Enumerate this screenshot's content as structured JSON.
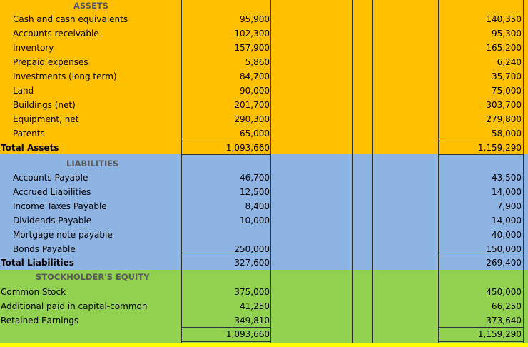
{
  "colors": {
    "assets": "#FFC000",
    "liabilities": "#8DB4E2",
    "equity": "#92D050"
  },
  "assets": {
    "heading": "ASSETS",
    "rows": [
      {
        "label": "Cash and cash equivalents",
        "v1": "95,900",
        "v2": "140,350"
      },
      {
        "label": "Accounts receivable",
        "v1": "102,300",
        "v2": "95,300"
      },
      {
        "label": "Inventory",
        "v1": "157,900",
        "v2": "165,200"
      },
      {
        "label": "Prepaid expenses",
        "v1": "5,860",
        "v2": "6,240"
      },
      {
        "label": "Investments (long term)",
        "v1": "84,700",
        "v2": "35,700"
      },
      {
        "label": "Land",
        "v1": "90,000",
        "v2": "75,000"
      },
      {
        "label": "Buildings (net)",
        "v1": "201,700",
        "v2": "303,700"
      },
      {
        "label": "Equipment, net",
        "v1": "290,300",
        "v2": "279,800"
      },
      {
        "label": "Patents",
        "v1": "65,000",
        "v2": "58,000"
      }
    ],
    "total": {
      "label": "Total Assets",
      "v1": "1,093,660",
      "v2": "1,159,290"
    }
  },
  "liabilities": {
    "heading": "LIABILITIES",
    "rows": [
      {
        "label": "Accounts Payable",
        "v1": "46,700",
        "v2": "43,500"
      },
      {
        "label": "Accrued Liabilities",
        "v1": "12,500",
        "v2": "14,000"
      },
      {
        "label": "Income Taxes Payable",
        "v1": "8,400",
        "v2": "7,900"
      },
      {
        "label": "Dividends Payable",
        "v1": "10,000",
        "v2": "14,000"
      },
      {
        "label": "Mortgage note payable",
        "v1": "",
        "v2": "40,000"
      },
      {
        "label": "Bonds Payable",
        "v1": "250,000",
        "v2": "150,000"
      }
    ],
    "total": {
      "label": "Total Liabilities",
      "v1": "327,600",
      "v2": "269,400"
    }
  },
  "equity": {
    "heading": "STOCKHOLDER'S EQUITY",
    "rows": [
      {
        "label": "Common Stock",
        "v1": "375,000",
        "v2": "450,000"
      },
      {
        "label": "Additional paid in capital-common",
        "v1": "41,250",
        "v2": "66,250"
      },
      {
        "label": "Retained Earnings",
        "v1": "349,810",
        "v2": "373,640"
      }
    ],
    "total": {
      "v1": "1,093,660",
      "v2": "1,159,290"
    }
  }
}
